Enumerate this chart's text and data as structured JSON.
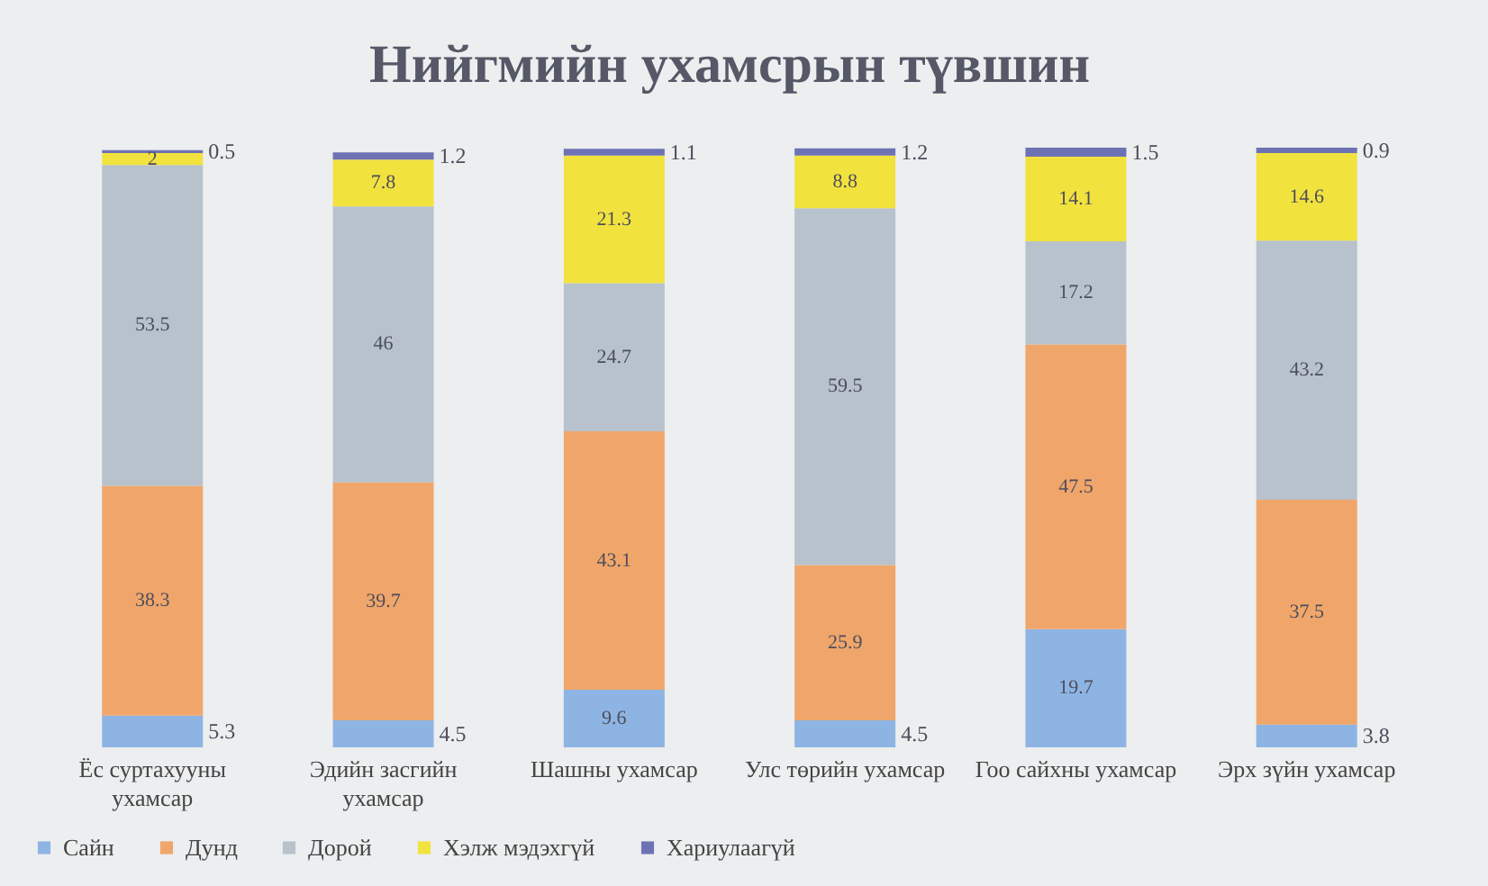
{
  "chart_data": {
    "type": "bar",
    "title": "Нийгмийн ухамсрын түвшин",
    "categories": [
      "Ёс суртахууны ухамсар",
      "Эдийн засгийн ухамсар",
      "Шашны ухамсар",
      "Улс төрийн ухамсар",
      "Гоо сайхны ухамсар",
      "Эрх зүйн ухамсар"
    ],
    "stacked": true,
    "series": [
      {
        "name": "Сайн",
        "color": "#8eb4e3",
        "values": [
          5.3,
          4.5,
          9.6,
          4.5,
          19.7,
          3.8
        ]
      },
      {
        "name": "Дунд",
        "color": "#f0a66a",
        "values": [
          38.3,
          39.7,
          43.1,
          25.9,
          47.5,
          37.5
        ]
      },
      {
        "name": "Дорой",
        "color": "#b7c2cc",
        "values": [
          53.5,
          46,
          24.7,
          59.5,
          17.2,
          43.2
        ]
      },
      {
        "name": "Хэлж мэдэхгүй",
        "color": "#f2e23e",
        "values": [
          2,
          7.8,
          21.3,
          8.8,
          14.1,
          14.6
        ]
      },
      {
        "name": "Хариулаагүй",
        "color": "#6e72b5",
        "values": [
          0.5,
          1.2,
          1.1,
          1.2,
          1.5,
          0.9
        ]
      }
    ],
    "data_labels": true,
    "legend": "bottom",
    "grid": false,
    "tick_labels": "x"
  }
}
